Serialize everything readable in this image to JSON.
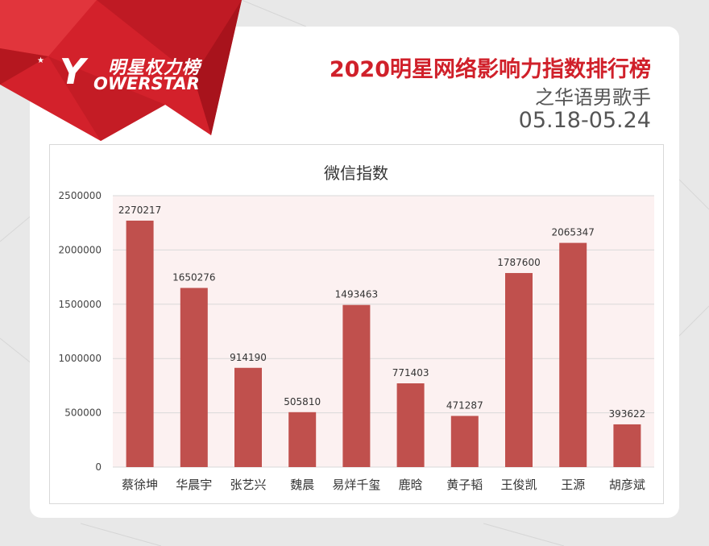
{
  "header": {
    "logo_cn": "明星权力榜",
    "logo_en": "OWERSTAR",
    "logo_y": "Y",
    "title": "2020明星网络影响力指数排行榜",
    "subtitle": "之华语男歌手",
    "date_range": "05.18-05.24"
  },
  "colors": {
    "brand_red": "#d0202a",
    "bar": "#c0504d",
    "plot_bg": "#fcf1f1"
  },
  "chart_data": {
    "type": "bar",
    "title": "微信指数",
    "categories": [
      "蔡徐坤",
      "华晨宇",
      "张艺兴",
      "魏晨",
      "易烊千玺",
      "鹿晗",
      "黄子韬",
      "王俊凯",
      "王源",
      "胡彦斌"
    ],
    "values": [
      2270217,
      1650276,
      914190,
      505810,
      1493463,
      771403,
      471287,
      1787600,
      2065347,
      393622
    ],
    "data_labels": [
      "2270217",
      "1650276",
      "914190",
      "505810",
      "1493463",
      "771403",
      "471287",
      "1787600",
      "2065347",
      "393622"
    ],
    "yticks": [
      "0",
      "500000",
      "1000000",
      "1500000",
      "2000000",
      "2500000"
    ],
    "ytick_values": [
      0,
      500000,
      1000000,
      1500000,
      2000000,
      2500000
    ],
    "ylim": [
      0,
      2500000
    ],
    "grid": true,
    "legend": "none"
  }
}
